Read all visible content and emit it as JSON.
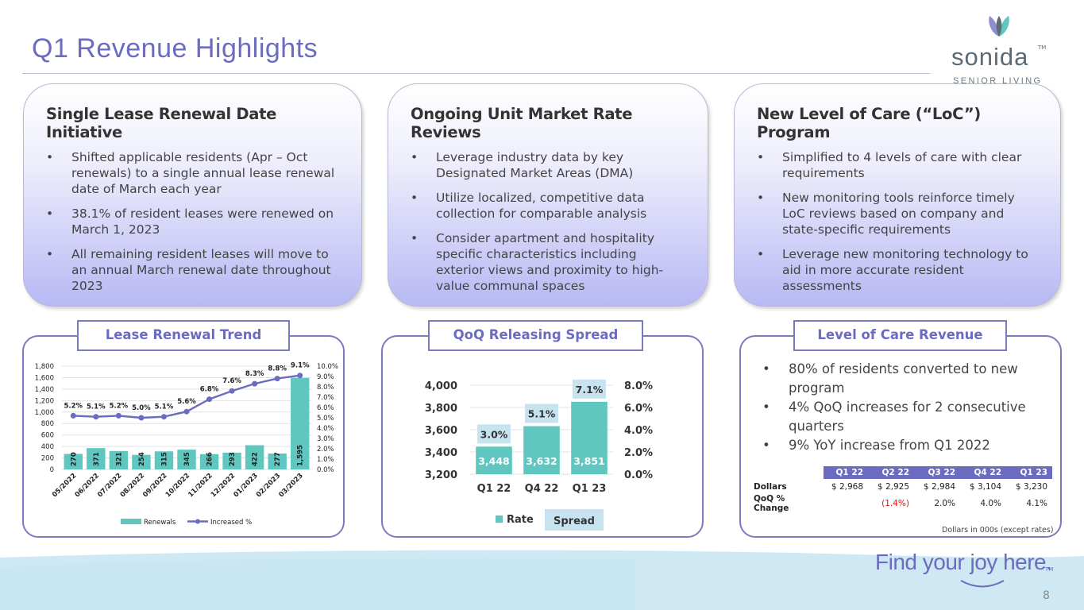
{
  "title": "Q1 Revenue Highlights",
  "logo": {
    "word": "sonida",
    "tm": "TM",
    "sub": "SENIOR LIVING"
  },
  "cards": [
    {
      "heading": "Single Lease Renewal Date Initiative",
      "bullets": [
        "Shifted applicable residents (Apr – Oct renewals) to a single annual lease renewal date of March each year",
        "38.1% of resident leases were renewed on March 1, 2023",
        "All remaining resident leases will move to an annual March renewal date throughout 2023"
      ]
    },
    {
      "heading": "Ongoing Unit Market Rate Reviews",
      "bullets": [
        "Leverage industry data by key Designated Market Areas (DMA)",
        "Utilize localized, competitive data collection for comparable analysis",
        "Consider apartment and hospitality specific characteristics including exterior views and proximity to high-value communal spaces"
      ]
    },
    {
      "heading": "New Level of Care (“LoC”) Program",
      "bullets": [
        "Simplified to 4 levels of care with clear requirements",
        "New monitoring tools reinforce timely LoC reviews based on company and state-specific requirements",
        "Leverage new monitoring technology to aid in more accurate resident assessments"
      ]
    }
  ],
  "bullet_char": "•",
  "panels": {
    "lease": "Lease Renewal Trend",
    "qoq": "QoQ Releasing Spread",
    "loc": "Level of Care Revenue"
  },
  "chart_data": [
    {
      "type": "bar",
      "title": "",
      "categories": [
        "05/2022",
        "06/2022",
        "07/2022",
        "08/2022",
        "09/2022",
        "10/2022",
        "11/2022",
        "12/2022",
        "01/2023",
        "02/2023",
        "03/2023"
      ],
      "series": [
        {
          "name": "Renewals",
          "type": "bar",
          "values": [
            270,
            371,
            321,
            254,
            315,
            345,
            266,
            293,
            422,
            277,
            1595
          ],
          "color": "#5fc7c0"
        },
        {
          "name": "Increased %",
          "type": "line",
          "values": [
            5.2,
            5.1,
            5.2,
            5.0,
            5.1,
            5.6,
            6.8,
            7.6,
            8.3,
            8.8,
            9.1
          ],
          "labels": [
            "5.2%",
            "5.1%",
            "5.2%",
            "5.0%",
            "5.1%",
            "5.6%",
            "6.8%",
            "7.6%",
            "8.3%",
            "8.8%",
            "9.1%"
          ],
          "color": "#6b6bbf"
        }
      ],
      "ylim": [
        0,
        1800
      ],
      "yticks": [
        "1,800",
        "1,600",
        "1,400",
        "1,200",
        "1,000",
        "800",
        "600",
        "400",
        "200",
        "0"
      ],
      "y2lim": [
        0,
        10
      ],
      "y2ticks": [
        "10.0%",
        "9.0%",
        "8.0%",
        "7.0%",
        "6.0%",
        "5.0%",
        "4.0%",
        "3.0%",
        "2.0%",
        "1.0%",
        "0.0%"
      ],
      "legend_position": "bottom",
      "grid": true
    },
    {
      "type": "bar",
      "title": "",
      "categories": [
        "Q1 22",
        "Q4 22",
        "Q1 23"
      ],
      "series": [
        {
          "name": "Rate",
          "type": "bar",
          "values": [
            3448,
            3632,
            3851
          ],
          "labels": [
            "3,448",
            "3,632",
            "3,851"
          ],
          "color": "#5fc7c0"
        },
        {
          "name": "Spread",
          "type": "label",
          "values": [
            3.0,
            5.1,
            7.1
          ],
          "labels": [
            "3.0%",
            "5.1%",
            "7.1%"
          ],
          "color": "#c7e3f0"
        }
      ],
      "ylim": [
        3200,
        4000
      ],
      "yticks": [
        "4,000",
        "3,800",
        "3,600",
        "3,400",
        "3,200"
      ],
      "y2lim": [
        0,
        8
      ],
      "y2ticks": [
        "8.0%",
        "6.0%",
        "4.0%",
        "2.0%",
        "0.0%"
      ],
      "legend_position": "bottom",
      "grid": true
    }
  ],
  "loc": {
    "bullets": [
      "80% of residents converted to new program",
      "4% QoQ increases for 2 consecutive quarters",
      "9% YoY increase from Q1 2022"
    ],
    "table": {
      "headers": [
        "Q1 22",
        "Q2 22",
        "Q3 22",
        "Q4 22",
        "Q1 23"
      ],
      "rows": [
        {
          "label": "Dollars",
          "cells": [
            "$  2,968",
            "$  2,925",
            "$  2,984",
            "$  3,104",
            "$  3,230"
          ]
        },
        {
          "label": "QoQ % Change",
          "cells": [
            "",
            "(1.4%)",
            "2.0%",
            "4.0%",
            "4.1%"
          ]
        }
      ]
    },
    "note": "Dollars in 000s (except rates)"
  },
  "footer": {
    "tagline": "Find your joy here.",
    "tm": "TM",
    "page": "8"
  }
}
